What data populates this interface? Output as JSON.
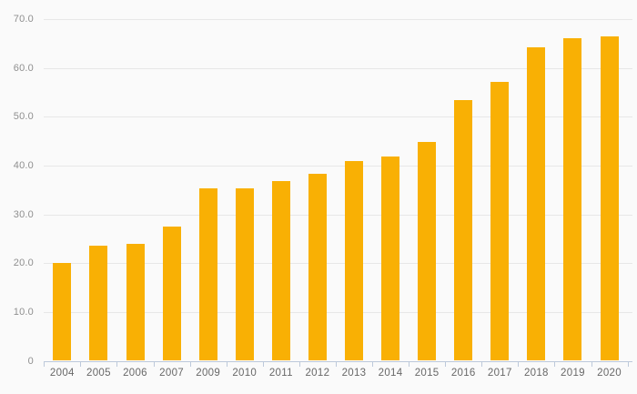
{
  "page": {
    "background": "#fafafa"
  },
  "chart_data": {
    "type": "bar",
    "title": "",
    "xlabel": "",
    "ylabel": "",
    "categories": [
      "2004",
      "2005",
      "2006",
      "2007",
      "2009",
      "2010",
      "2011",
      "2012",
      "2013",
      "2014",
      "2015",
      "2016",
      "2017",
      "2018",
      "2019",
      "2020"
    ],
    "values": [
      20.0,
      23.6,
      24.0,
      27.5,
      35.3,
      35.3,
      36.9,
      38.4,
      41.0,
      41.9,
      44.9,
      53.5,
      57.1,
      64.3,
      66.1,
      66.4
    ],
    "ylim": [
      0,
      70
    ],
    "yticks": [
      0,
      10,
      20,
      30,
      40,
      50,
      60,
      70
    ],
    "ytick_labels": [
      "0",
      "10.0",
      "20.0",
      "30.0",
      "40.0",
      "50.0",
      "60.0",
      "70.0"
    ],
    "grid": true,
    "legend": false,
    "bar_color": "#f9b004",
    "gridline_color": "#e7e7e7",
    "axis_line_color": "#bdc9db",
    "ytick_label_color": "#8f8f8f",
    "xtick_label_color": "#686868"
  }
}
